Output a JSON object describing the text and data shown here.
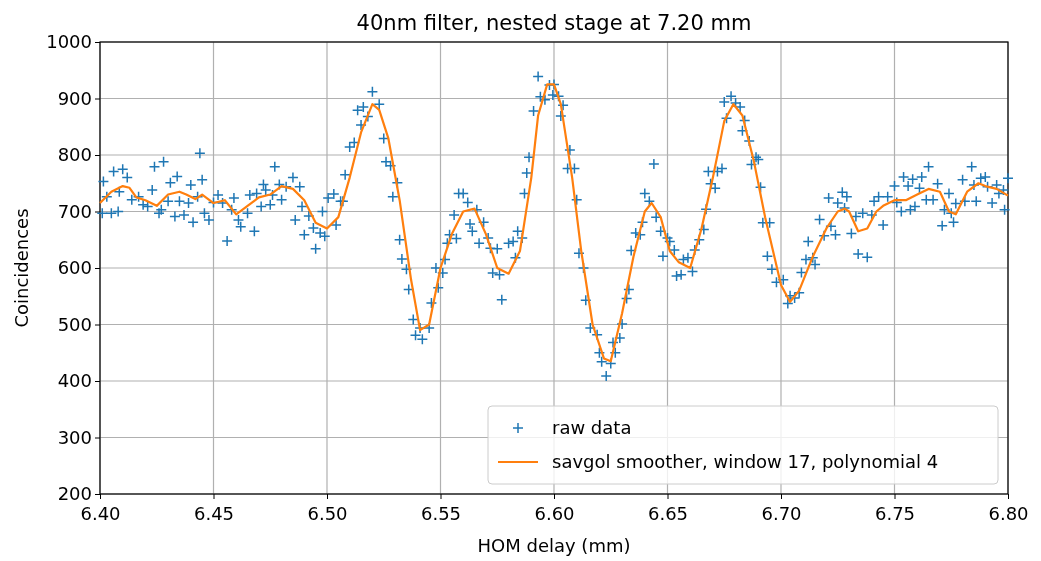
{
  "chart_data": {
    "type": "scatter",
    "title": "40nm filter, nested stage at 7.20 mm",
    "xlabel": "HOM delay (mm)",
    "ylabel": "Coincidences",
    "xlim": [
      6.4,
      6.8
    ],
    "xticks": [
      {
        "value": 6.4,
        "label": "6.40"
      },
      {
        "value": 6.45,
        "label": "6.45"
      },
      {
        "value": 6.5,
        "label": "6.50"
      },
      {
        "value": 6.55,
        "label": "6.55"
      },
      {
        "value": 6.6,
        "label": "6.60"
      },
      {
        "value": 6.65,
        "label": "6.65"
      },
      {
        "value": 6.7,
        "label": "6.70"
      },
      {
        "value": 6.75,
        "label": "6.75"
      },
      {
        "value": 6.8,
        "label": "6.80"
      }
    ],
    "ylim": [
      200,
      1000
    ],
    "yticks": [
      200,
      300,
      400,
      500,
      600,
      700,
      800,
      900,
      1000
    ],
    "grid": true,
    "legend": "bottom right",
    "series": [
      {
        "name": "raw data",
        "type": "scatter",
        "marker": "cross",
        "color": "#1f77b4",
        "x": [
          6.4015,
          6.403,
          6.401,
          6.405,
          6.406,
          6.408,
          6.41,
          6.4085,
          6.412,
          6.414,
          6.417,
          6.419,
          6.421,
          6.423,
          6.424,
          6.426,
          6.428,
          6.427,
          6.43,
          6.431,
          6.433,
          6.434,
          6.435,
          6.437,
          6.44,
          6.439,
          6.441,
          6.443,
          6.444,
          6.445,
          6.446,
          6.448,
          6.45,
          6.452,
          6.454,
          6.456,
          6.458,
          6.459,
          6.461,
          6.462,
          6.465,
          6.466,
          6.468,
          6.469,
          6.471,
          6.472,
          6.473,
          6.475,
          6.476,
          6.477,
          6.479,
          6.48,
          6.482,
          6.485,
          6.486,
          6.488,
          6.489,
          6.49,
          6.492,
          6.494,
          6.495,
          6.497,
          6.498,
          6.499,
          6.5005,
          6.503,
          6.504,
          6.506,
          6.507,
          6.508,
          6.51,
          6.512,
          6.5135,
          6.515,
          6.516,
          6.518,
          6.52,
          6.523,
          6.525,
          6.526,
          6.528,
          6.529,
          6.531,
          6.532,
          6.533,
          6.535,
          6.536,
          6.538,
          6.539,
          6.541,
          6.542,
          6.545,
          6.546,
          6.548,
          6.549,
          6.551,
          6.552,
          6.553,
          6.554,
          6.556,
          6.557,
          6.558,
          6.56,
          6.562,
          6.563,
          6.564,
          6.566,
          6.567,
          6.569,
          6.571,
          6.572,
          6.573,
          6.575,
          6.576,
          6.577,
          6.58,
          6.582,
          6.583,
          6.584,
          6.586,
          6.587,
          6.588,
          6.589,
          6.591,
          6.593,
          6.594,
          6.596,
          6.598,
          6.5995,
          6.6,
          6.602,
          6.604,
          6.603,
          6.607,
          6.606,
          6.609,
          6.61,
          6.611,
          6.613,
          6.614,
          6.616,
          6.619,
          6.62,
          6.621,
          6.623,
          6.625,
          6.626,
          6.627,
          6.629,
          6.63,
          6.632,
          6.633,
          6.634,
          6.636,
          6.638,
          6.639,
          6.64,
          6.642,
          6.644,
          6.645,
          6.647,
          6.648,
          6.65,
          6.651,
          6.653,
          6.654,
          6.656,
          6.657,
          6.659,
          6.661,
          6.662,
          6.664,
          6.666,
          6.667,
          6.669,
          6.671,
          6.668,
          6.672,
          6.674,
          6.676,
          6.675,
          6.678,
          6.68,
          6.682,
          6.684,
          6.683,
          6.686,
          6.689,
          6.687,
          6.69,
          6.691,
          6.692,
          6.695,
          6.694,
          6.696,
          6.698,
          6.701,
          6.703,
          6.704,
          6.706,
          6.708,
          6.709,
          6.711,
          6.712,
          6.714,
          6.715,
          6.717,
          6.719,
          6.721,
          6.722,
          6.724,
          6.725,
          6.727,
          6.728,
          6.729,
          6.731,
          6.733,
          6.734,
          6.736,
          6.738,
          6.74,
          6.741,
          6.743,
          6.745,
          6.747,
          6.75,
          6.751,
          6.753,
          6.754,
          6.756,
          6.757,
          6.758,
          6.759,
          6.761,
          6.762,
          6.764,
          6.765,
          6.767,
          6.769,
          6.771,
          6.772,
          6.774,
          6.775,
          6.776,
          6.777,
          6.78,
          6.781,
          6.784,
          6.785,
          6.786,
          6.788,
          6.79,
          6.791,
          6.793,
          6.795,
          6.796,
          6.798,
          6.7985,
          6.8
        ],
        "values": [
          753,
          726,
          697,
          697,
          771,
          700,
          775,
          735,
          760,
          721,
          726,
          712,
          709,
          738,
          779,
          697,
          788,
          703,
          718,
          751,
          691,
          762,
          718,
          694,
          747,
          715,
          681,
          726,
          803,
          756,
          697,
          685,
          716,
          729,
          715,
          648,
          703,
          724,
          685,
          673,
          697,
          729,
          665,
          732,
          709,
          748,
          738,
          712,
          729,
          779,
          748,
          721,
          744,
          760,
          685,
          744,
          709,
          659,
          692,
          671,
          634,
          662,
          700,
          656,
          724,
          731,
          676,
          718,
          718,
          765,
          814,
          822,
          879,
          853,
          885,
          868,
          912,
          890,
          829,
          788,
          781,
          726,
          751,
          650,
          616,
          598,
          562,
          509,
          481,
          494,
          474,
          494,
          538,
          600,
          565,
          591,
          615,
          644,
          659,
          694,
          652,
          732,
          732,
          716,
          678,
          665,
          703,
          644,
          681,
          653,
          635,
          591,
          634,
          588,
          544,
          644,
          647,
          618,
          665,
          653,
          732,
          768,
          796,
          878,
          939,
          903,
          898,
          924,
          906,
          925,
          904,
          888,
          869,
          809,
          776,
          776,
          721,
          626,
          600,
          543,
          494,
          482,
          450,
          434,
          409,
          431,
          468,
          450,
          476,
          501,
          546,
          562,
          631,
          662,
          659,
          681,
          732,
          718,
          784,
          690,
          665,
          621,
          653,
          647,
          632,
          586,
          588,
          615,
          618,
          594,
          632,
          650,
          668,
          704,
          749,
          741,
          771,
          771,
          776,
          865,
          894,
          904,
          892,
          885,
          861,
          843,
          825,
          796,
          783,
          792,
          743,
          680,
          680,
          621,
          598,
          575,
          579,
          537,
          551,
          547,
          556,
          592,
          615,
          647,
          618,
          606,
          686,
          657,
          724,
          674,
          659,
          715,
          734,
          706,
          726,
          661,
          691,
          625,
          697,
          619,
          694,
          718,
          726,
          676,
          726,
          745,
          716,
          700,
          761,
          745,
          703,
          757,
          709,
          741,
          761,
          721,
          779,
          721,
          749,
          675,
          703,
          732,
          697,
          681,
          714,
          756,
          718,
          779,
          747,
          718,
          759,
          761,
          744,
          715,
          747,
          732,
          738,
          703,
          759
        ]
      },
      {
        "name": "savgol smoother, window 17, polynomial 4",
        "type": "line",
        "marker": "none",
        "line_style": "solid",
        "color": "#ff7f0e",
        "x": [
          6.4,
          6.405,
          6.41,
          6.413,
          6.416,
          6.42,
          6.425,
          6.43,
          6.435,
          6.438,
          6.442,
          6.445,
          6.45,
          6.455,
          6.46,
          6.465,
          6.47,
          6.475,
          6.48,
          6.485,
          6.49,
          6.495,
          6.5,
          6.505,
          6.51,
          6.515,
          6.52,
          6.523,
          6.527,
          6.532,
          6.537,
          6.541,
          6.545,
          6.55,
          6.555,
          6.56,
          6.565,
          6.57,
          6.575,
          6.58,
          6.585,
          6.59,
          6.593,
          6.597,
          6.6,
          6.603,
          6.608,
          6.612,
          6.617,
          6.622,
          6.625,
          6.63,
          6.635,
          6.64,
          6.643,
          6.647,
          6.651,
          6.655,
          6.66,
          6.665,
          6.67,
          6.675,
          6.679,
          6.683,
          6.688,
          6.693,
          6.7,
          6.704,
          6.708,
          6.714,
          6.72,
          6.725,
          6.728,
          6.73,
          6.734,
          6.738,
          6.742,
          6.745,
          6.75,
          6.755,
          6.76,
          6.765,
          6.77,
          6.774,
          6.777,
          6.782,
          6.787,
          6.79,
          6.795,
          6.8
        ],
        "values": [
          715,
          735,
          745,
          742,
          725,
          720,
          710,
          730,
          735,
          730,
          722,
          730,
          715,
          720,
          695,
          710,
          725,
          730,
          745,
          740,
          720,
          680,
          670,
          690,
          760,
          840,
          890,
          880,
          830,
          720,
          580,
          490,
          500,
          600,
          660,
          700,
          705,
          660,
          600,
          590,
          630,
          760,
          870,
          925,
          925,
          890,
          760,
          630,
          500,
          440,
          435,
          520,
          620,
          700,
          715,
          690,
          630,
          610,
          600,
          670,
          760,
          860,
          890,
          870,
          790,
          690,
          570,
          540,
          560,
          620,
          670,
          700,
          705,
          700,
          665,
          670,
          700,
          710,
          720,
          720,
          730,
          740,
          735,
          700,
          695,
          735,
          750,
          745,
          740,
          728
        ]
      }
    ]
  }
}
